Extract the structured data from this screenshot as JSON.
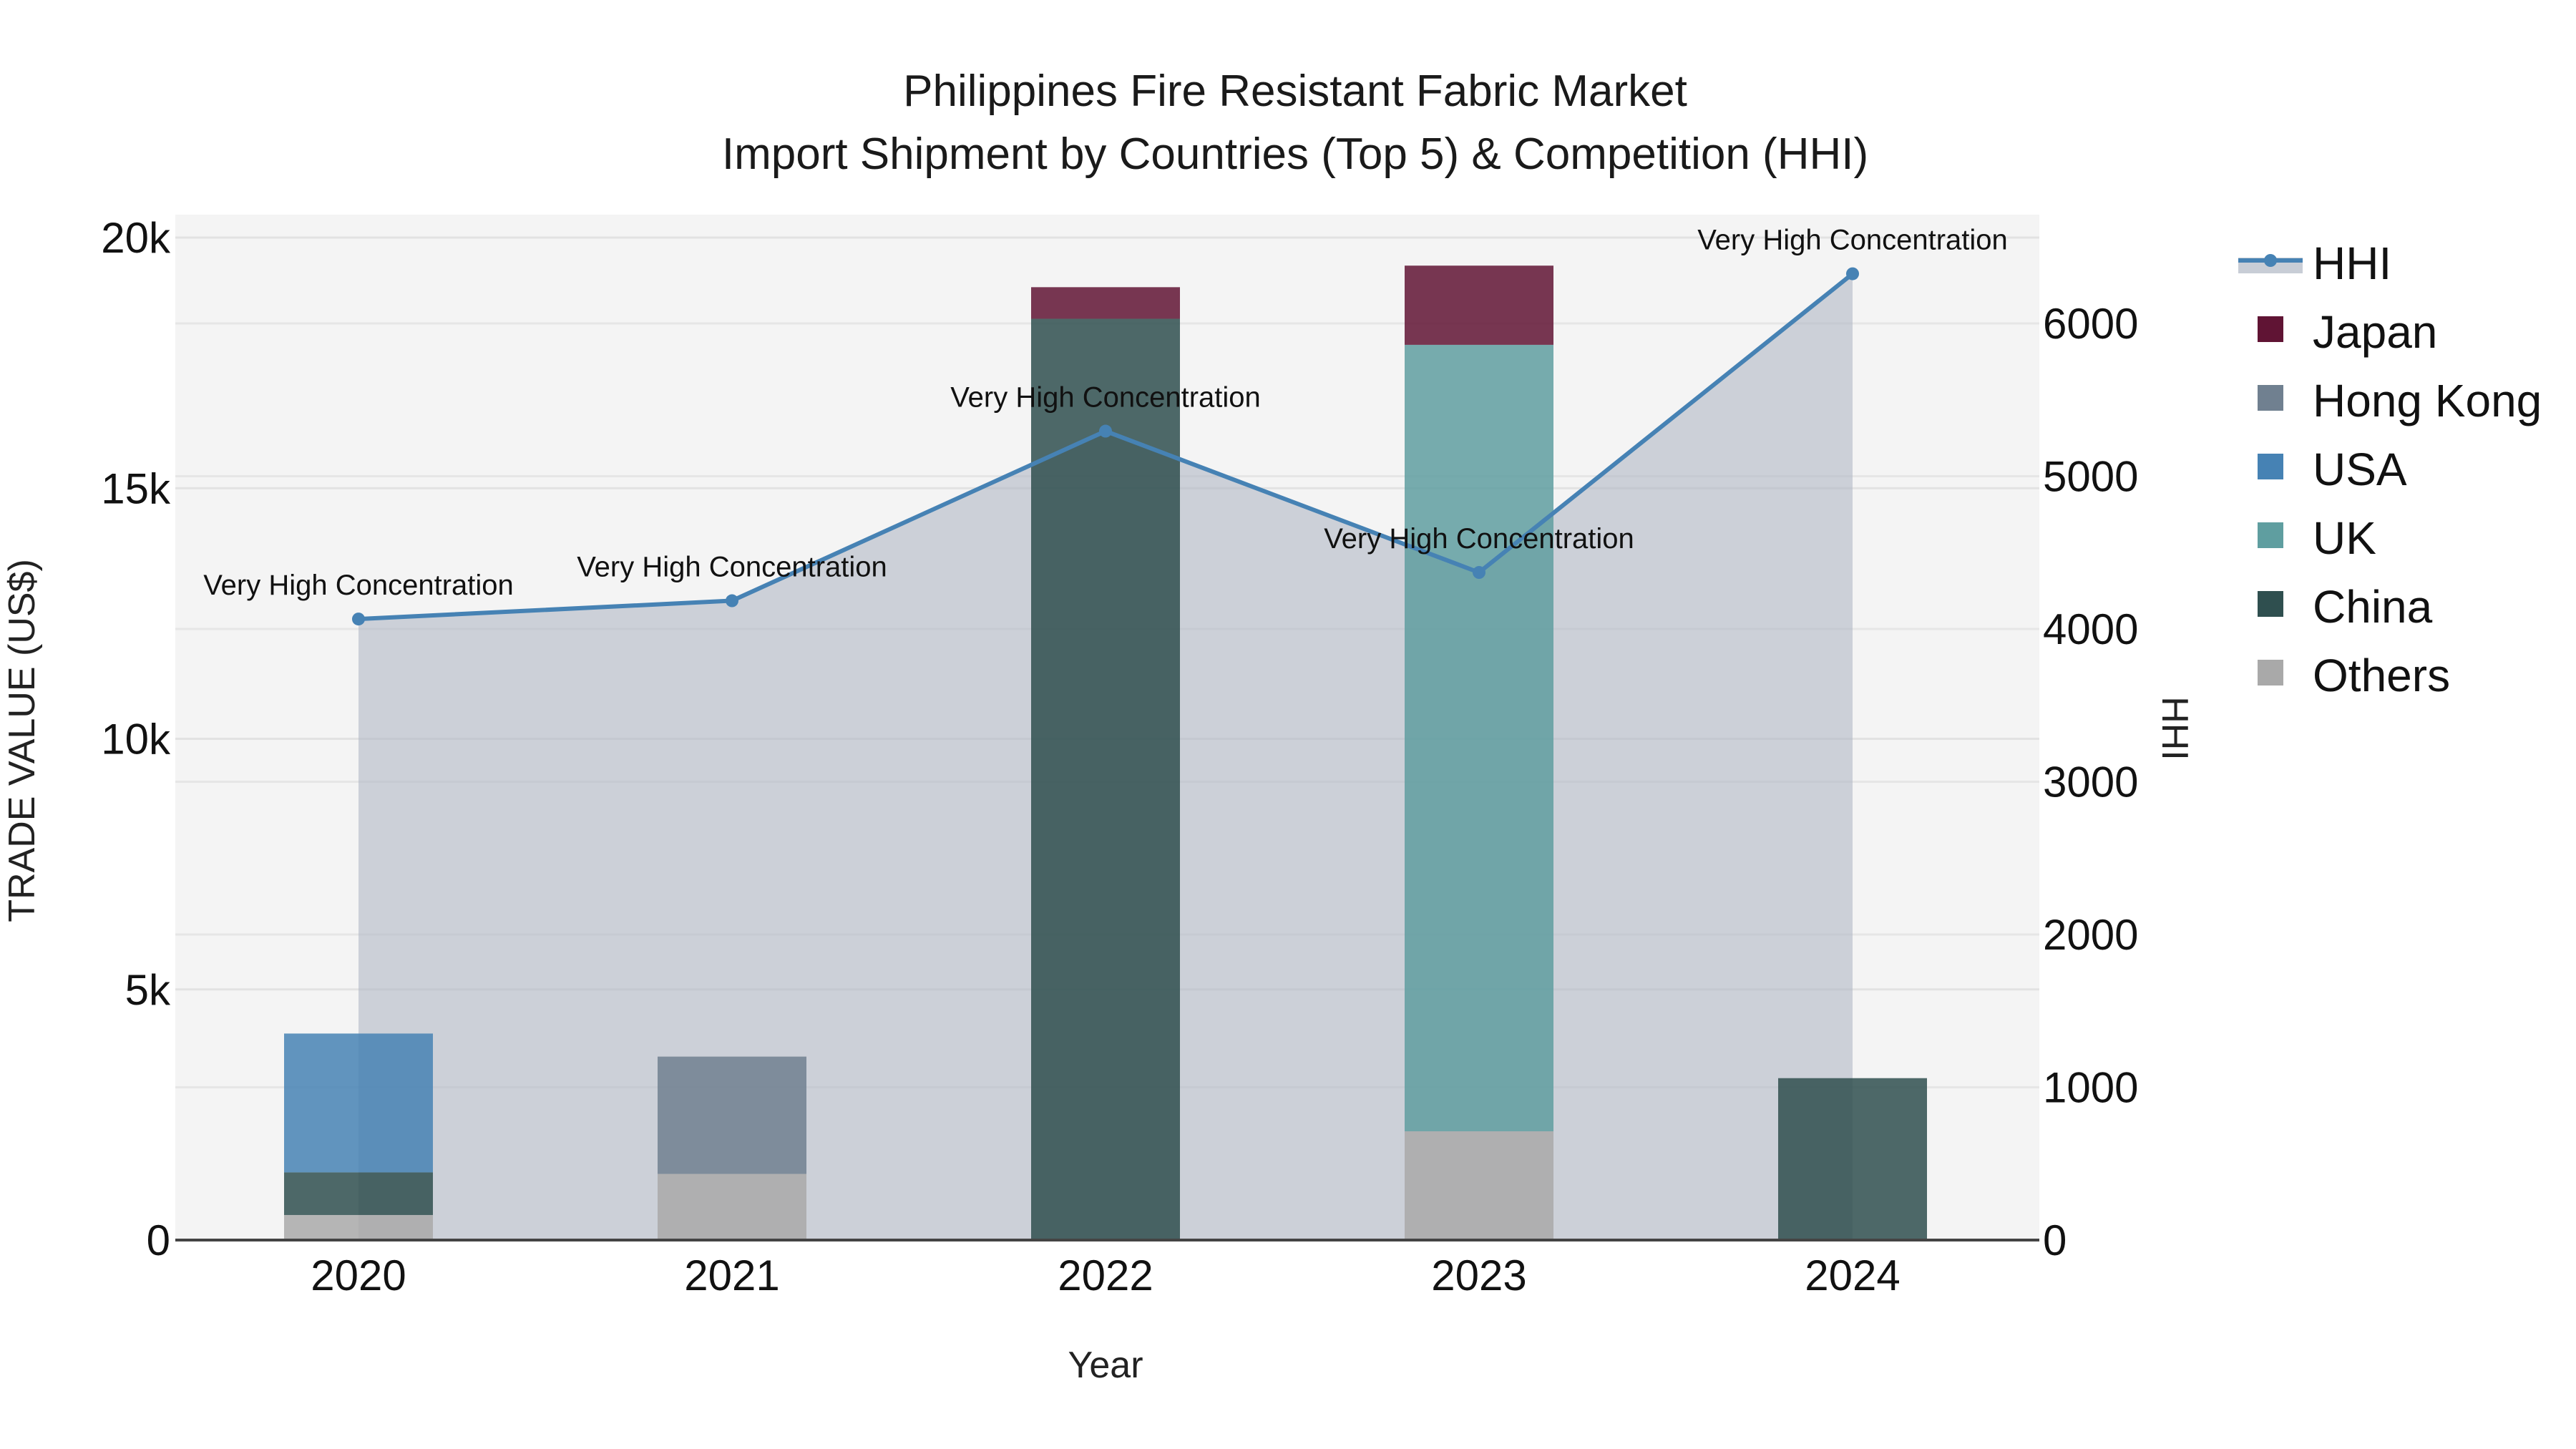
{
  "title": {
    "line1": "Philippines Fire Resistant Fabric Market",
    "line2": "Import Shipment by Countries (Top 5) & Competition (HHI)"
  },
  "axes": {
    "x_title": "Year",
    "y_left_title": "TRADE VALUE (US$)",
    "y_right_title": "HHI",
    "y_left_ticks": [
      "0",
      "5k",
      "10k",
      "15k",
      "20k"
    ],
    "y_right_ticks": [
      "0",
      "1000",
      "2000",
      "3000",
      "4000",
      "5000",
      "6000"
    ],
    "x_ticks": [
      "2020",
      "2021",
      "2022",
      "2023",
      "2024"
    ]
  },
  "legend": {
    "items": [
      {
        "label": "HHI",
        "color": "#4682B4",
        "type": "line"
      },
      {
        "label": "Japan",
        "color": "#601434",
        "type": "bar"
      },
      {
        "label": "Hong Kong",
        "color": "#708090",
        "type": "bar"
      },
      {
        "label": "USA",
        "color": "#4682B4",
        "type": "bar"
      },
      {
        "label": "UK",
        "color": "#5F9EA0",
        "type": "bar"
      },
      {
        "label": "China",
        "color": "#2F4F4F",
        "type": "bar"
      },
      {
        "label": "Others",
        "color": "#A9A9A9",
        "type": "bar"
      }
    ]
  },
  "annotations": [
    "Very High Concentration",
    "Very High Concentration",
    "Very High Concentration",
    "Very High Concentration",
    "Very High Concentration"
  ],
  "chart_data": {
    "type": "bar",
    "stacked": true,
    "title": "Philippines Fire Resistant Fabric Market — Import Shipment by Countries (Top 5) & Competition (HHI)",
    "xlabel": "Year",
    "ylabel": "TRADE VALUE (US$)",
    "y2label": "HHI",
    "categories": [
      "2020",
      "2021",
      "2022",
      "2023",
      "2024"
    ],
    "ylim": [
      0,
      20500
    ],
    "y2lim": [
      0,
      6650
    ],
    "grid": true,
    "legend_position": "right",
    "series": [
      {
        "name": "Others",
        "color": "#A9A9A9",
        "values": [
          500,
          1320,
          0,
          2170,
          0
        ]
      },
      {
        "name": "China",
        "color": "#2F4F4F",
        "values": [
          850,
          0,
          18380,
          0,
          3230
        ]
      },
      {
        "name": "UK",
        "color": "#5F9EA0",
        "values": [
          0,
          0,
          0,
          15690,
          0
        ]
      },
      {
        "name": "USA",
        "color": "#4682B4",
        "values": [
          2770,
          0,
          0,
          0,
          0
        ]
      },
      {
        "name": "Hong Kong",
        "color": "#708090",
        "values": [
          0,
          2340,
          0,
          0,
          0
        ]
      },
      {
        "name": "Japan",
        "color": "#601434",
        "values": [
          0,
          0,
          630,
          1580,
          0
        ]
      }
    ],
    "hhi": {
      "name": "HHI",
      "type": "line+area",
      "axis": "right",
      "color": "#4682B4",
      "values": [
        4065,
        4185,
        5295,
        4370,
        6325
      ],
      "labels": [
        "Very High Concentration",
        "Very High Concentration",
        "Very High Concentration",
        "Very High Concentration",
        "Very High Concentration"
      ]
    }
  }
}
